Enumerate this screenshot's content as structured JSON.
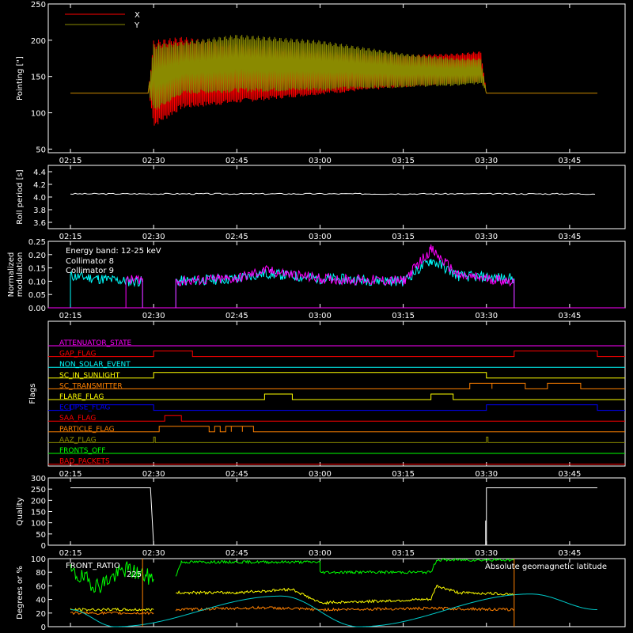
{
  "time_ticks": [
    "02:15",
    "02:30",
    "02:45",
    "03:00",
    "03:15",
    "03:30",
    "03:45"
  ],
  "chart_data": [
    {
      "type": "line",
      "name": "pointing",
      "ylabel": "Pointing [\"]",
      "ylim": [
        45,
        250
      ],
      "yticks": [
        50,
        100,
        150,
        200,
        250
      ],
      "x_range": [
        "02:15",
        "03:50"
      ],
      "legend": {
        "placement": "top-left",
        "entries": [
          {
            "name": "X",
            "color": "#ff0000"
          },
          {
            "name": "Y",
            "color": "#8a8a00"
          }
        ]
      },
      "series": [
        {
          "name": "X",
          "color": "#ff0000",
          "x": [
            "02:15",
            "02:29",
            "02:30",
            "02:35",
            "02:45",
            "03:00",
            "03:15",
            "03:25",
            "03:29",
            "03:30",
            "03:50"
          ],
          "upper": [
            127,
            127,
            200,
            205,
            195,
            185,
            180,
            182,
            185,
            127,
            127
          ],
          "lower": [
            127,
            127,
            80,
            105,
            113,
            125,
            135,
            140,
            142,
            127,
            127
          ]
        },
        {
          "name": "Y",
          "color": "#8a8a00",
          "x": [
            "02:15",
            "02:29",
            "02:30",
            "02:35",
            "02:45",
            "03:00",
            "03:15",
            "03:25",
            "03:29",
            "03:30",
            "03:50"
          ],
          "upper": [
            127,
            127,
            195,
            198,
            208,
            200,
            182,
            175,
            175,
            127,
            127
          ],
          "lower": [
            127,
            127,
            100,
            125,
            128,
            130,
            135,
            137,
            140,
            127,
            127
          ]
        }
      ]
    },
    {
      "type": "line",
      "name": "roll-period",
      "ylabel": "Roll period [s]",
      "ylim": [
        3.5,
        4.5
      ],
      "yticks": [
        "3.6",
        "3.8",
        "4.0",
        "4.2",
        "4.4"
      ],
      "series": [
        {
          "name": "",
          "color": "#ffffff",
          "x": [
            "02:15",
            "03:50"
          ],
          "y": [
            4.05,
            4.05
          ]
        }
      ]
    },
    {
      "type": "line",
      "name": "modulation",
      "ylabel": "Normalized\nmodulation",
      "ylim": [
        0,
        0.25
      ],
      "yticks": [
        "0.00",
        "0.05",
        "0.10",
        "0.15",
        "0.20",
        "0.25"
      ],
      "annotation": "Energy band: 12-25 keV",
      "legend": {
        "placement": "top-left",
        "entries": [
          {
            "name": "Collimator 8",
            "color": "#00ffff"
          },
          {
            "name": "Collimator 9",
            "color": "#ff00ff"
          }
        ]
      },
      "series": [
        {
          "name": "Collimator 8",
          "color": "#00ffff",
          "segments": [
            {
              "x": [
                "02:15",
                "02:20",
                "02:25",
                "02:28"
              ],
              "y": [
                0.12,
                0.11,
                0.1,
                0.1
              ]
            },
            {
              "x": [
                "02:34",
                "02:45",
                "02:50",
                "03:00",
                "03:15",
                "03:20",
                "03:25",
                "03:35"
              ],
              "y": [
                0.1,
                0.11,
                0.13,
                0.11,
                0.1,
                0.18,
                0.12,
                0.11
              ]
            }
          ]
        },
        {
          "name": "Collimator 9",
          "color": "#ff00ff",
          "segments": [
            {
              "x": [
                "02:25",
                "02:28"
              ],
              "y": [
                0.1,
                0.11
              ]
            },
            {
              "x": [
                "02:34",
                "02:45",
                "02:50",
                "03:00",
                "03:15",
                "03:20",
                "03:25",
                "03:35"
              ],
              "y": [
                0.1,
                0.11,
                0.14,
                0.11,
                0.1,
                0.22,
                0.12,
                0.1
              ]
            }
          ]
        }
      ]
    },
    {
      "type": "line",
      "name": "flags",
      "ylabel": "Flags",
      "flags": [
        {
          "name": "ATTENUATOR_STATE",
          "color": "#ff00ff",
          "high": []
        },
        {
          "name": "GAP_FLAG",
          "color": "#ff0000",
          "high": [
            [
              "02:30",
              "02:37"
            ],
            [
              "03:35",
              "03:50"
            ]
          ]
        },
        {
          "name": "NON_SOLAR_EVENT",
          "color": "#00ffff",
          "high": []
        },
        {
          "name": "SC_IN_SUNLIGHT",
          "color": "#ffff00",
          "high": [
            [
              "02:30",
              "03:30"
            ]
          ]
        },
        {
          "name": "SC_TRANSMITTER",
          "color": "#ff8000",
          "high": [
            [
              "03:27",
              "03:31"
            ],
            [
              "03:31",
              "03:37"
            ],
            [
              "03:41",
              "03:47"
            ]
          ]
        },
        {
          "name": "FLARE_FLAG",
          "color": "#ffff00",
          "high": [
            [
              "02:50",
              "02:55"
            ],
            [
              "03:20",
              "03:24"
            ]
          ]
        },
        {
          "name": "ECLIPSE_FLAG",
          "color": "#0000ff",
          "high": [
            [
              "02:15",
              "02:30"
            ],
            [
              "03:30",
              "03:50"
            ]
          ]
        },
        {
          "name": "SAA_FLAG",
          "color": "#ff0000",
          "high": [
            [
              "02:32",
              "02:35"
            ]
          ]
        },
        {
          "name": "PARTICLE_FLAG",
          "color": "#ff8000",
          "high": [
            [
              "02:31",
              "02:40"
            ],
            [
              "02:41",
              "02:42"
            ],
            [
              "02:43",
              "02:44"
            ],
            [
              "02:44",
              "02:46"
            ],
            [
              "02:46",
              "02:48"
            ]
          ]
        },
        {
          "name": "AAZ_FLAG",
          "color": "#8a8a00",
          "high": [
            [
              "02:30",
              "02:30"
            ],
            [
              "03:30",
              "03:30"
            ]
          ]
        },
        {
          "name": "FRONTS_OFF",
          "color": "#00ff00",
          "high": []
        },
        {
          "name": "BAD_PACKETS",
          "color": "#ff0000",
          "high": []
        }
      ]
    },
    {
      "type": "line",
      "name": "quality",
      "ylabel": "Quality",
      "ylim": [
        0,
        300
      ],
      "yticks": [
        0,
        50,
        100,
        150,
        200,
        250,
        300
      ],
      "series": [
        {
          "name": "",
          "color": "#ffffff",
          "x": [
            "02:15",
            "02:29",
            "02:29",
            "02:30",
            "03:30",
            "03:30",
            "03:50"
          ],
          "y": [
            256,
            256,
            256,
            0,
            0,
            256,
            256
          ]
        }
      ]
    },
    {
      "type": "line",
      "name": "geomagnetic",
      "ylabel": "Degrees or %",
      "ylim": [
        0,
        100
      ],
      "yticks": [
        0,
        20,
        40,
        60,
        80,
        100
      ],
      "legend_text": [
        "FRONT_RATIO",
        "225",
        "Absolute geomagnetic latitude"
      ],
      "series": [
        {
          "name": "FRONT_RATIO",
          "color": "#00ff00",
          "segments": [
            {
              "x": [
                "02:15",
                "02:20",
                "02:25",
                "02:30"
              ],
              "y": [
                80,
                60,
                85,
                70
              ]
            },
            {
              "x": [
                "02:34",
                "02:35",
                "03:00",
                "03:00",
                "03:20",
                "03:21",
                "03:35"
              ],
              "y": [
                75,
                95,
                95,
                80,
                80,
                98,
                98
              ]
            }
          ]
        },
        {
          "name": "",
          "color": "#ffff00",
          "segments": [
            {
              "x": [
                "02:15",
                "02:30"
              ],
              "y": [
                25,
                25
              ]
            },
            {
              "x": [
                "02:34",
                "02:45",
                "02:55",
                "03:00",
                "03:20",
                "03:21",
                "03:25",
                "03:35"
              ],
              "y": [
                50,
                50,
                55,
                35,
                40,
                60,
                50,
                48
              ]
            }
          ]
        },
        {
          "name": "",
          "color": "#ff8000",
          "segments": [
            {
              "x": [
                "02:15",
                "02:30"
              ],
              "y": [
                20,
                20
              ]
            },
            {
              "x": [
                "02:34",
                "02:50",
                "03:00",
                "03:20",
                "03:35"
              ],
              "y": [
                25,
                28,
                25,
                27,
                25
              ]
            }
          ]
        },
        {
          "name": "Absolute geomagnetic latitude",
          "color": "#00cccc",
          "x": [
            "02:15",
            "02:23",
            "02:53",
            "03:07",
            "03:38",
            "03:50"
          ],
          "y": [
            25,
            0,
            45,
            0,
            48,
            25
          ]
        }
      ]
    }
  ]
}
